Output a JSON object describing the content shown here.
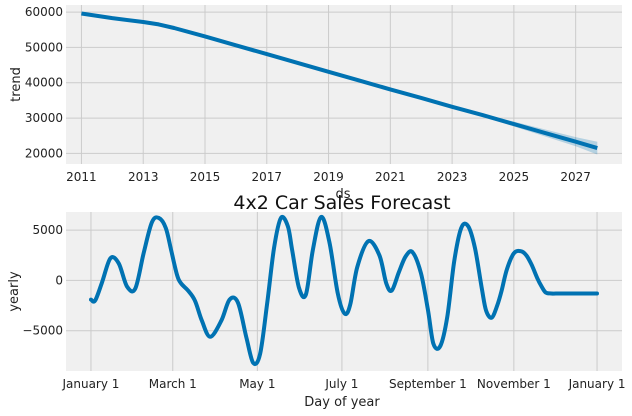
{
  "chart_data": [
    {
      "type": "line",
      "ylabel": "trend",
      "xlabel": "ds",
      "title": "",
      "x_ticks": [
        "2011",
        "2013",
        "2015",
        "2017",
        "2019",
        "2021",
        "2023",
        "2025",
        "2027"
      ],
      "y_ticks": [
        "20000",
        "30000",
        "40000",
        "50000",
        "60000"
      ],
      "xlim": [
        2010.5,
        2028.5
      ],
      "ylim": [
        17000,
        62000
      ],
      "series": [
        {
          "x": [
            2011,
            2012,
            2013,
            2013.5,
            2014,
            2015,
            2016,
            2017,
            2018,
            2019,
            2020,
            2021,
            2022,
            2023,
            2024,
            2025,
            2026,
            2027,
            2027.7
          ],
          "values": [
            59600,
            58300,
            57200,
            56500,
            55500,
            53100,
            50600,
            48100,
            45600,
            43100,
            40600,
            38100,
            35700,
            33200,
            30800,
            28300,
            25800,
            23300,
            21500
          ]
        }
      ],
      "band": {
        "x": [
          2011,
          2023,
          2024,
          2025,
          2026,
          2027,
          2027.7
        ],
        "lower": [
          59600,
          33200,
          30400,
          27600,
          24800,
          22000,
          19700
        ],
        "upper": [
          59600,
          33200,
          31200,
          29000,
          26800,
          24600,
          23300
        ]
      },
      "colors": {
        "line": "#0072b2",
        "band": "#0072b2",
        "background": "#f0f0f0"
      }
    },
    {
      "type": "line",
      "title": "4x2 Car Sales Forecast",
      "ylabel": "yearly",
      "xlabel": "Day of year",
      "x_ticks": [
        {
          "label": "January 1",
          "day": 0
        },
        {
          "label": "March 1",
          "day": 59
        },
        {
          "label": "May 1",
          "day": 120
        },
        {
          "label": "July 1",
          "day": 181
        },
        {
          "label": "September 1",
          "day": 243
        },
        {
          "label": "November 1",
          "day": 305
        },
        {
          "label": "January 1",
          "day": 365
        }
      ],
      "y_ticks": [
        {
          "label": "−5000",
          "value": -5000
        },
        {
          "label": "0",
          "value": 0
        },
        {
          "label": "5000",
          "value": 5000
        }
      ],
      "xlim": [
        -18,
        383
      ],
      "ylim": [
        -9000,
        6800
      ],
      "series": [
        {
          "x": [
            0,
            3,
            8,
            14,
            20,
            26,
            32,
            38,
            44,
            49,
            54,
            58,
            62,
            65,
            70,
            75,
            80,
            86,
            94,
            100,
            106,
            112,
            117,
            122,
            127,
            132,
            137,
            142,
            145,
            150,
            155,
            160,
            166,
            172,
            178,
            183,
            187,
            192,
            200,
            208,
            213,
            217,
            222,
            227,
            232,
            238,
            243,
            247,
            252,
            257,
            262,
            267,
            272,
            277,
            282,
            285,
            289,
            293,
            296,
            300,
            305,
            310,
            314,
            318,
            322,
            325,
            328,
            332,
            337,
            342,
            347,
            352,
            356,
            359,
            365
          ],
          "values": [
            -1900,
            -2000,
            -200,
            2200,
            1700,
            -600,
            -800,
            2700,
            5800,
            6200,
            5200,
            2900,
            600,
            -300,
            -1000,
            -2000,
            -4000,
            -5600,
            -4000,
            -1900,
            -2200,
            -5600,
            -8200,
            -7300,
            -2400,
            3200,
            6200,
            5400,
            3100,
            -700,
            -1400,
            3000,
            6300,
            3800,
            -1300,
            -3300,
            -2400,
            1300,
            3900,
            2500,
            -300,
            -1000,
            800,
            2400,
            2800,
            700,
            -2900,
            -6300,
            -6500,
            -3600,
            1900,
            5200,
            5400,
            3200,
            -900,
            -3000,
            -3700,
            -2500,
            -1100,
            1100,
            2700,
            2900,
            2500,
            1500,
            200,
            -600,
            -1200,
            -1300,
            -1300,
            -1300,
            -1300,
            -1300,
            -1300,
            -1300,
            -1300
          ],
          "color": "#0072b2"
        }
      ],
      "colors": {
        "line": "#0072b2",
        "background": "#f0f0f0"
      }
    }
  ]
}
